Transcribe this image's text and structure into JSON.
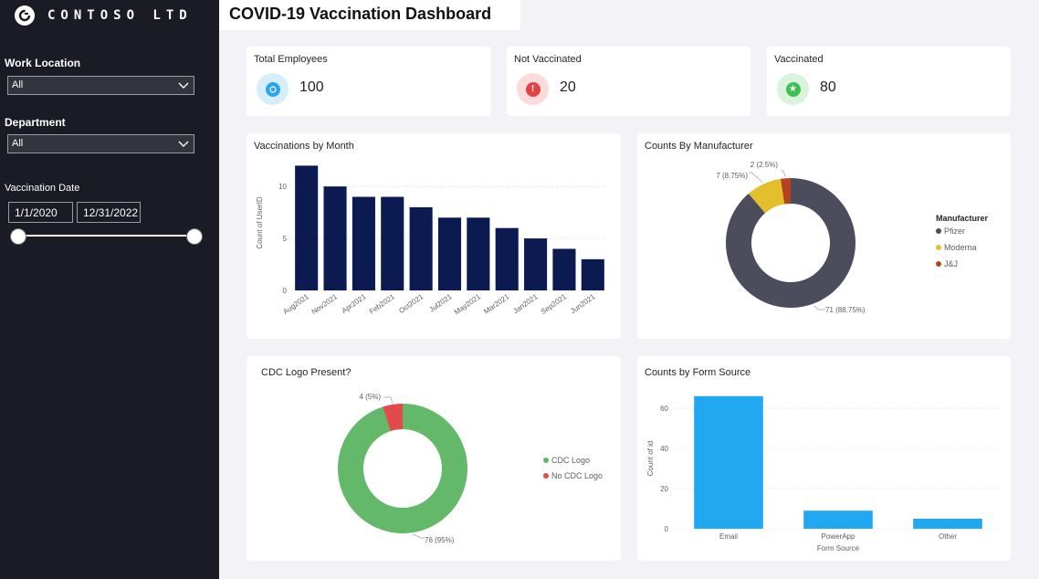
{
  "app": {
    "brand": "CONTOSO LTD",
    "title": "COVID-19 Vaccination Dashboard"
  },
  "colors": {
    "sidebar": "#1a1b24",
    "navy": "#0c1a52",
    "blue": "#21a8f0",
    "pfizer": "#4b4d5d",
    "moderna": "#e3bf2e",
    "jj": "#b5441e",
    "green": "#63b86a",
    "red": "#e14b4b"
  },
  "filters": {
    "work_location": {
      "label": "Work Location",
      "value": "All"
    },
    "department": {
      "label": "Department",
      "value": "All"
    },
    "vaccination_date": {
      "label": "Vaccination Date",
      "start": "1/1/2020",
      "end": "12/31/2022"
    }
  },
  "kpis": {
    "total": {
      "label": "Total Employees",
      "value": "100",
      "icon": "employees-icon"
    },
    "not_vaccinated": {
      "label": "Not Vaccinated",
      "value": "20",
      "icon": "alert-icon"
    },
    "vaccinated": {
      "label": "Vaccinated",
      "value": "80",
      "icon": "star-icon"
    }
  },
  "chart_data": [
    {
      "id": "by_month",
      "type": "bar",
      "title": "Vaccinations by Month",
      "xlabel": "",
      "ylabel": "Count of UserID",
      "ylim": [
        0,
        13
      ],
      "yticks": [
        0,
        5,
        10
      ],
      "categories": [
        "Aug2021",
        "Nov2021",
        "Apr2021",
        "Feb2021",
        "Oct2021",
        "Jul2021",
        "May2021",
        "Mar2021",
        "Jan2021",
        "Sep2021",
        "Jun2021"
      ],
      "values": [
        12,
        10,
        9,
        9,
        8,
        7,
        7,
        6,
        5,
        4,
        3
      ],
      "color": "#0c1a52"
    },
    {
      "id": "by_manufacturer",
      "type": "pie",
      "donut": true,
      "title": "Counts By Manufacturer",
      "legend_title": "Manufacturer",
      "slices": [
        {
          "label": "Pfizer",
          "value": 71,
          "display": "71 (88.75%)",
          "color": "#4b4d5d"
        },
        {
          "label": "Moderna",
          "value": 7,
          "display": "7 (8.75%)",
          "color": "#e3bf2e"
        },
        {
          "label": "J&J",
          "value": 2,
          "display": "2 (2.5%)",
          "color": "#b5441e"
        }
      ]
    },
    {
      "id": "cdc_logo",
      "type": "pie",
      "donut": true,
      "title": "CDC Logo Present?",
      "slices": [
        {
          "label": "CDC Logo",
          "value": 76,
          "display": "76 (95%)",
          "color": "#63b86a"
        },
        {
          "label": "No CDC Logo",
          "value": 4,
          "display": "4 (5%)",
          "color": "#e14b4b"
        }
      ]
    },
    {
      "id": "form_source",
      "type": "bar",
      "title": "Counts by Form Source",
      "xlabel": "Form Source",
      "ylabel": "Count of id",
      "ylim": [
        0,
        70
      ],
      "yticks": [
        0,
        20,
        40,
        60
      ],
      "categories": [
        "Email",
        "PowerApp",
        "Other"
      ],
      "values": [
        66,
        9,
        5
      ],
      "color": "#21a8f0"
    }
  ]
}
